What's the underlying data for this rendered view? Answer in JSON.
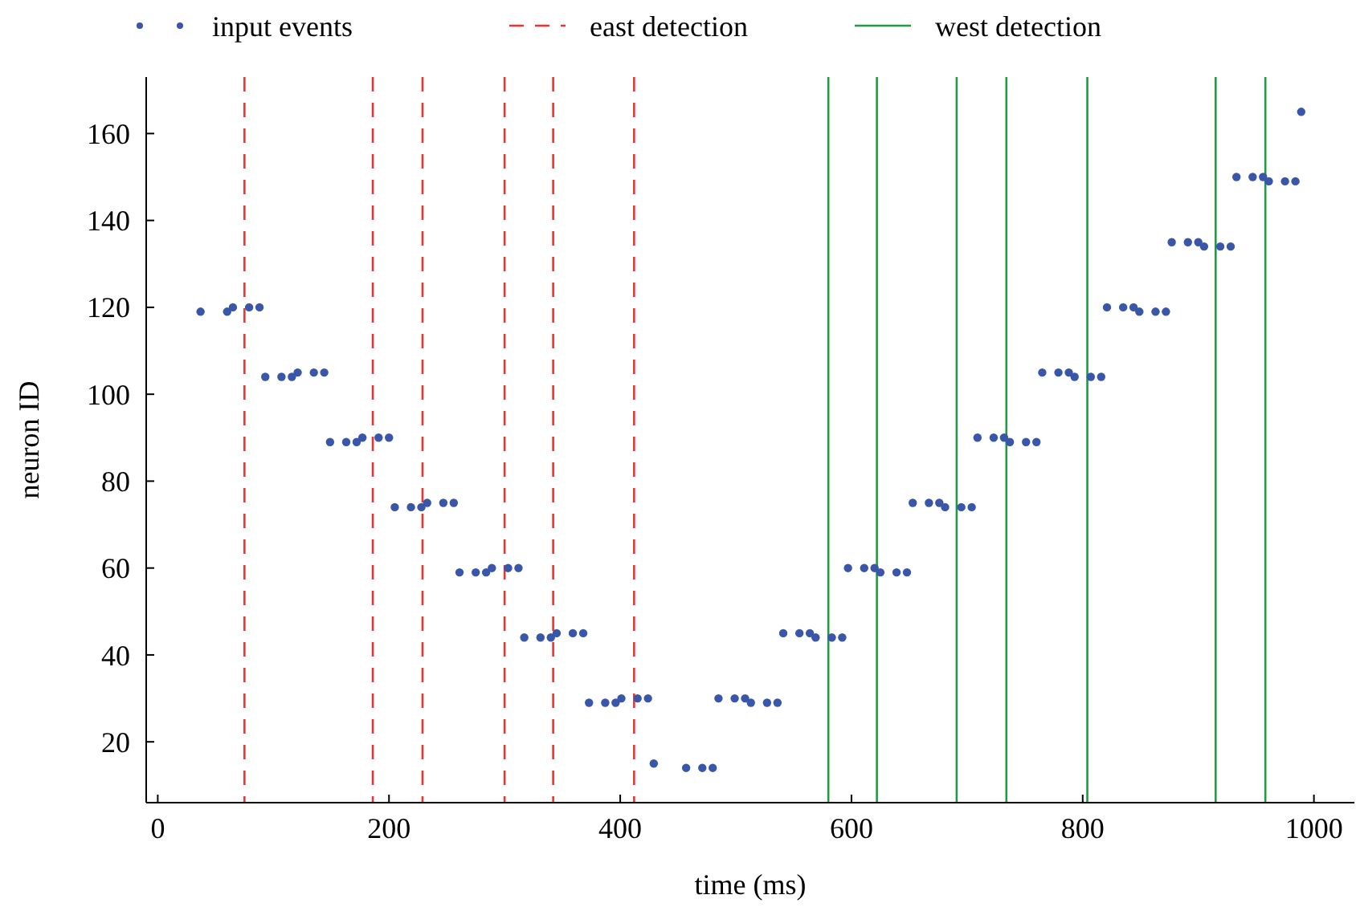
{
  "chart_data": {
    "type": "scatter",
    "xlabel": "time (ms)",
    "ylabel": "neuron ID",
    "xlim": [
      -10,
      1035
    ],
    "ylim": [
      6,
      173
    ],
    "xticks": [
      0,
      200,
      400,
      600,
      800,
      1000
    ],
    "yticks": [
      20,
      40,
      60,
      80,
      100,
      120,
      140,
      160
    ],
    "grid": false,
    "legend": "top",
    "marker": "circle",
    "series": [
      {
        "name": "input events",
        "color": "#3a56a8",
        "x": [
          37,
          60,
          65,
          79,
          88,
          93,
          107,
          116,
          121,
          135,
          144,
          149,
          163,
          172,
          177,
          191,
          200,
          205,
          219,
          228,
          233,
          247,
          256,
          261,
          275,
          284,
          289,
          303,
          312,
          317,
          331,
          340,
          345,
          359,
          368,
          373,
          387,
          396,
          401,
          415,
          424,
          429,
          457,
          471,
          480,
          485,
          499,
          508,
          513,
          527,
          536,
          541,
          555,
          564,
          569,
          583,
          592,
          597,
          611,
          620,
          625,
          639,
          648,
          653,
          667,
          676,
          681,
          695,
          704,
          709,
          723,
          732,
          737,
          751,
          760,
          765,
          779,
          788,
          793,
          807,
          816,
          821,
          835,
          844,
          849,
          863,
          872,
          877,
          891,
          900,
          905,
          919,
          928,
          933,
          947,
          956,
          961,
          975,
          984,
          989
        ],
        "values": [
          119,
          119,
          120,
          120,
          120,
          104,
          104,
          104,
          105,
          105,
          105,
          89,
          89,
          89,
          90,
          90,
          90,
          74,
          74,
          74,
          75,
          75,
          75,
          59,
          59,
          59,
          60,
          60,
          60,
          44,
          44,
          44,
          45,
          45,
          45,
          29,
          29,
          29,
          30,
          30,
          30,
          15,
          14,
          14,
          14,
          30,
          30,
          30,
          29,
          29,
          29,
          45,
          45,
          45,
          44,
          44,
          44,
          60,
          60,
          60,
          59,
          59,
          59,
          75,
          75,
          75,
          74,
          74,
          74,
          90,
          90,
          90,
          89,
          89,
          89,
          105,
          105,
          105,
          104,
          104,
          104,
          120,
          120,
          120,
          119,
          119,
          119,
          135,
          135,
          135,
          134,
          134,
          134,
          150,
          150,
          150,
          149,
          149,
          149,
          165
        ]
      }
    ],
    "ref_lines": [
      {
        "axis": "x",
        "value": 75,
        "label": "east detection",
        "color": "#ee3333",
        "line_style": "dashed"
      },
      {
        "axis": "x",
        "value": 186,
        "color": "#ee3333",
        "line_style": "dashed"
      },
      {
        "axis": "x",
        "value": 229,
        "color": "#ee3333",
        "line_style": "dashed"
      },
      {
        "axis": "x",
        "value": 300,
        "color": "#ee3333",
        "line_style": "dashed"
      },
      {
        "axis": "x",
        "value": 342,
        "color": "#ee3333",
        "line_style": "dashed"
      },
      {
        "axis": "x",
        "value": 412,
        "color": "#ee3333",
        "line_style": "dashed"
      },
      {
        "axis": "x",
        "value": 580,
        "label": "west detection",
        "color": "#229944",
        "line_style": "solid"
      },
      {
        "axis": "x",
        "value": 622,
        "color": "#229944",
        "line_style": "solid"
      },
      {
        "axis": "x",
        "value": 691,
        "color": "#229944",
        "line_style": "solid"
      },
      {
        "axis": "x",
        "value": 734,
        "color": "#229944",
        "line_style": "solid"
      },
      {
        "axis": "x",
        "value": 804,
        "color": "#229944",
        "line_style": "solid"
      },
      {
        "axis": "x",
        "value": 915,
        "color": "#229944",
        "line_style": "solid"
      },
      {
        "axis": "x",
        "value": 958,
        "color": "#229944",
        "line_style": "solid"
      }
    ]
  }
}
